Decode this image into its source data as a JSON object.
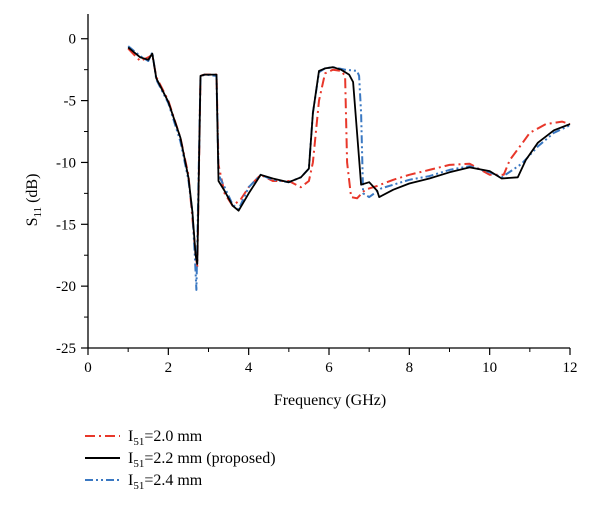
{
  "chart_data": {
    "type": "line",
    "xlabel": "Frequency (GHz)",
    "ylabel": {
      "main": "S",
      "sub": "11",
      "unit": " (dB)"
    },
    "xlim": [
      0,
      12
    ],
    "ylim": [
      -25,
      2
    ],
    "xticks": [
      0,
      2,
      4,
      6,
      8,
      10,
      12
    ],
    "yticks": [
      0,
      -5,
      -10,
      -15,
      -20,
      -25
    ],
    "grid": false,
    "legend_position": "bottom-left",
    "series": [
      {
        "legend": {
          "pre": "I",
          "sub": "51",
          "post": "=2.0 mm"
        },
        "color": "#e8372a",
        "dash": "10,4,2,4",
        "x": [
          1.0,
          1.3,
          1.5,
          1.6,
          1.7,
          2.0,
          2.3,
          2.5,
          2.6,
          2.68,
          2.72,
          2.8,
          2.9,
          3.2,
          3.25,
          3.4,
          3.6,
          3.8,
          4.0,
          4.3,
          4.6,
          5.0,
          5.3,
          5.5,
          5.6,
          5.75,
          5.9,
          6.1,
          6.3,
          6.4,
          6.45,
          6.55,
          6.7,
          6.9,
          7.2,
          7.6,
          8.0,
          8.5,
          9.0,
          9.5,
          10.0,
          10.35,
          10.5,
          10.8,
          11.0,
          11.4,
          11.8,
          12.0
        ],
        "y": [
          -0.8,
          -1.8,
          -1.5,
          -1.3,
          -3.1,
          -5.0,
          -8.0,
          -11.0,
          -14.5,
          -17.5,
          -18.4,
          -3.0,
          -2.9,
          -2.9,
          -10.2,
          -12.5,
          -13.5,
          -13.0,
          -12.0,
          -11.0,
          -11.5,
          -11.5,
          -12.0,
          -11.5,
          -10.0,
          -5.0,
          -2.8,
          -2.5,
          -2.6,
          -3.0,
          -10.0,
          -12.8,
          -12.9,
          -12.2,
          -11.9,
          -11.4,
          -11.0,
          -10.6,
          -10.2,
          -10.1,
          -11.0,
          -11.0,
          -9.8,
          -8.5,
          -7.6,
          -6.9,
          -6.7,
          -6.9
        ]
      },
      {
        "legend": {
          "pre": "I",
          "sub": "51",
          "post": "=2.2 mm (proposed)"
        },
        "color": "#000000",
        "dash": "",
        "x": [
          1.0,
          1.3,
          1.5,
          1.6,
          1.7,
          2.0,
          2.3,
          2.5,
          2.6,
          2.68,
          2.72,
          2.8,
          2.9,
          3.2,
          3.25,
          3.4,
          3.6,
          3.75,
          4.0,
          4.3,
          4.6,
          5.0,
          5.3,
          5.5,
          5.6,
          5.75,
          5.9,
          6.1,
          6.3,
          6.5,
          6.6,
          6.8,
          7.0,
          7.2,
          7.25,
          7.6,
          8.0,
          8.5,
          9.0,
          9.5,
          10.0,
          10.3,
          10.7,
          10.9,
          11.2,
          11.6,
          12.0
        ],
        "y": [
          -0.7,
          -1.5,
          -1.7,
          -1.2,
          -3.2,
          -5.1,
          -8.0,
          -11.2,
          -14.0,
          -17.5,
          -18.2,
          -3.0,
          -2.9,
          -2.9,
          -11.5,
          -12.3,
          -13.5,
          -13.9,
          -12.5,
          -11.0,
          -11.3,
          -11.6,
          -11.2,
          -10.5,
          -6.0,
          -2.6,
          -2.4,
          -2.3,
          -2.5,
          -2.9,
          -3.5,
          -11.8,
          -11.6,
          -12.3,
          -12.8,
          -12.2,
          -11.7,
          -11.3,
          -10.8,
          -10.4,
          -10.7,
          -11.3,
          -11.2,
          -9.8,
          -8.4,
          -7.4,
          -6.9
        ]
      },
      {
        "legend": {
          "pre": "I",
          "sub": "51",
          "post": "=2.4 mm"
        },
        "color": "#3a78c2",
        "dash": "8,3,2,3,2,3",
        "x": [
          1.0,
          1.3,
          1.5,
          1.6,
          1.7,
          2.0,
          2.3,
          2.5,
          2.6,
          2.66,
          2.7,
          2.8,
          2.9,
          3.2,
          3.25,
          3.4,
          3.6,
          3.75,
          4.0,
          4.3,
          4.6,
          5.0,
          5.3,
          5.5,
          5.6,
          5.75,
          5.9,
          6.1,
          6.4,
          6.7,
          6.75,
          6.8,
          6.85,
          7.0,
          7.3,
          7.6,
          8.0,
          8.5,
          9.0,
          9.5,
          10.0,
          10.3,
          10.8,
          11.2,
          11.6,
          12.0
        ],
        "y": [
          -0.6,
          -1.4,
          -1.8,
          -1.1,
          -3.3,
          -5.2,
          -8.3,
          -11.4,
          -14.0,
          -17.5,
          -20.3,
          -3.1,
          -2.9,
          -3.0,
          -11.0,
          -12.0,
          -13.4,
          -13.8,
          -12.0,
          -11.0,
          -11.4,
          -11.6,
          -11.2,
          -10.5,
          -6.0,
          -2.7,
          -2.4,
          -2.3,
          -2.5,
          -2.6,
          -3.0,
          -6.0,
          -12.5,
          -12.8,
          -12.1,
          -11.8,
          -11.4,
          -11.1,
          -10.6,
          -10.3,
          -10.8,
          -11.2,
          -10.1,
          -8.7,
          -7.6,
          -7.0
        ]
      }
    ]
  }
}
